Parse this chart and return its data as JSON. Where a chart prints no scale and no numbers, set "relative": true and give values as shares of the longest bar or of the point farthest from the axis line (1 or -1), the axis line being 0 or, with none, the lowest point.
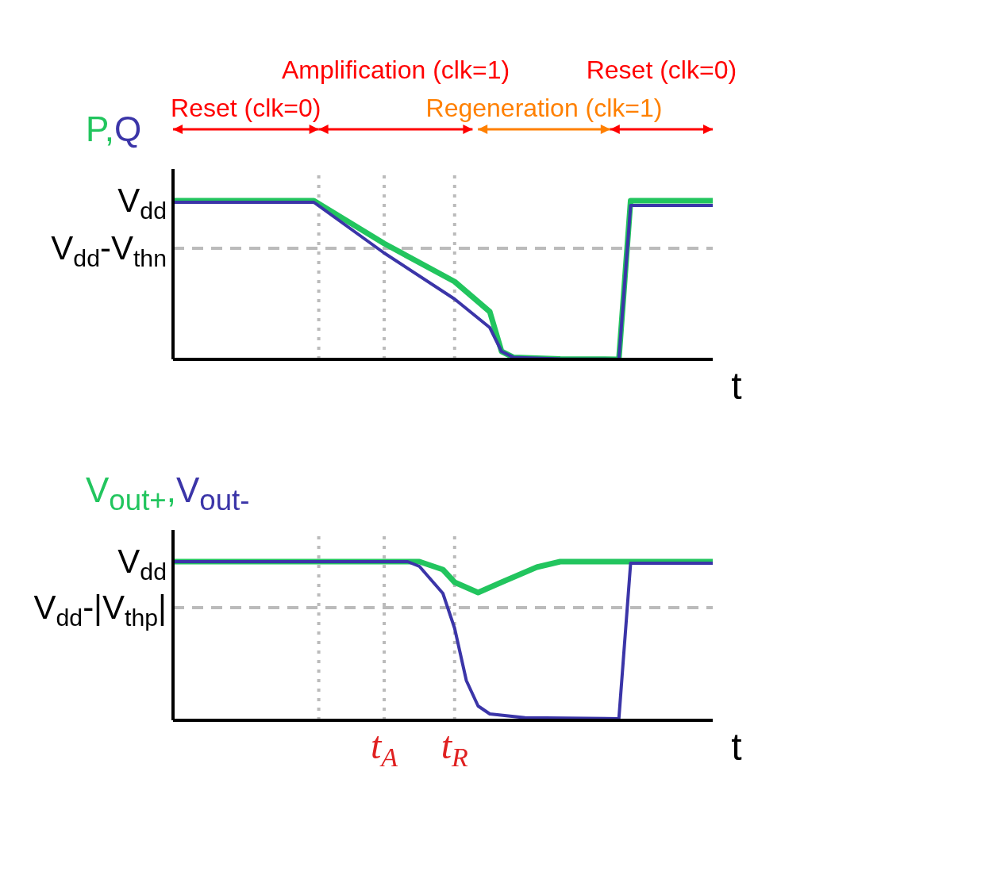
{
  "chart_data": [
    {
      "type": "line",
      "xlabel": "t",
      "relative": true,
      "tick_labels": false,
      "categories": [
        null,
        null,
        null,
        null,
        null,
        null,
        null,
        null,
        null,
        null,
        null,
        null,
        null,
        null,
        null,
        null,
        null,
        null,
        "t$_{A}$",
        null,
        null,
        null,
        null,
        null,
        "t$_{R}$",
        null,
        null,
        null,
        null,
        null,
        null,
        null,
        null,
        null,
        null,
        null,
        null,
        null,
        null,
        null,
        null,
        null,
        null,
        null,
        null,
        null,
        null
      ],
      "annotations": [
        "V$_{dd}$",
        "Reset (clk=0)",
        "Amplification (clk=1)",
        "Regeneration (clk=1)",
        "Reset (clk=0)"
      ],
      "series": [
        {
          "name": "P,",
          "color": "#22c55e",
          "values": [
            1.0,
            null,
            null,
            null,
            null,
            null,
            null,
            null,
            null,
            null,
            null,
            null,
            1.0,
            null,
            null,
            null,
            null,
            null,
            0.73,
            null,
            null,
            null,
            null,
            null,
            0.49,
            null,
            null,
            0.3,
            0.05,
            0.013,
            null,
            null,
            null,
            0.003,
            null,
            null,
            null,
            null,
            0.0,
            1.0,
            null,
            null,
            null,
            null,
            null,
            null,
            1.0
          ]
        },
        {
          "name": "Q",
          "color": "#3b35a8",
          "values": [
            0.99,
            null,
            null,
            null,
            null,
            null,
            null,
            null,
            null,
            null,
            null,
            null,
            0.99,
            null,
            null,
            null,
            null,
            null,
            0.67,
            null,
            null,
            null,
            null,
            null,
            0.38,
            null,
            null,
            0.2,
            0.05,
            0.013,
            null,
            null,
            null,
            0.003,
            null,
            null,
            null,
            null,
            0.0,
            0.97,
            null,
            null,
            null,
            null,
            null,
            null,
            0.97
          ]
        }
      ],
      "ref_lines": [
        {
          "axis": "y",
          "value": 0.7,
          "label": "V$_{dd}$-V$_{thn}$",
          "color": "#bbbbbb",
          "line_style": "dashed"
        },
        {
          "axis": "x",
          "value": "t$_{A}$",
          "color": "#bbbbbb",
          "line_style": "dotted"
        },
        {
          "axis": "x",
          "value": "t$_{R}$",
          "color": "#bbbbbb",
          "line_style": "dotted"
        }
      ]
    },
    {
      "type": "line",
      "xlabel": "t",
      "relative": true,
      "categories": [
        null,
        null,
        null,
        null,
        null,
        null,
        null,
        null,
        null,
        null,
        null,
        null,
        null,
        null,
        null,
        null,
        null,
        null,
        "t$_{A}$",
        null,
        null,
        null,
        null,
        null,
        "t$_{R}$",
        null,
        null,
        null,
        null,
        null,
        null,
        null,
        null,
        null,
        null,
        null,
        null,
        null,
        null,
        null,
        null,
        null,
        null,
        null,
        null,
        null,
        null
      ],
      "annotations": [
        "V$_{dd}$"
      ],
      "series": [
        {
          "name": "V$_{out+}$,",
          "color": "#22c55e",
          "values": [
            1.0,
            null,
            null,
            null,
            null,
            null,
            null,
            null,
            null,
            null,
            null,
            null,
            null,
            null,
            null,
            null,
            null,
            null,
            null,
            null,
            null,
            1.0,
            null,
            0.95,
            0.87,
            null,
            0.805,
            null,
            0.87,
            null,
            null,
            0.965,
            null,
            1.0,
            null,
            null,
            null,
            null,
            null,
            null,
            null,
            null,
            null,
            null,
            null,
            null,
            1.0
          ]
        },
        {
          "name": "V$_{out-}$",
          "color": "#3b35a8",
          "values": [
            1.0,
            null,
            null,
            null,
            null,
            null,
            null,
            null,
            null,
            null,
            null,
            null,
            null,
            null,
            null,
            null,
            null,
            null,
            null,
            null,
            1.0,
            0.97,
            null,
            0.8,
            0.58,
            0.25,
            0.09,
            0.04,
            null,
            null,
            0.016,
            null,
            null,
            null,
            null,
            null,
            null,
            null,
            0.01,
            0.99,
            null,
            null,
            null,
            null,
            null,
            null,
            0.99
          ]
        }
      ],
      "ref_lines": [
        {
          "axis": "y",
          "value": 0.71,
          "label": "V$_{dd}$-|V$_{thp}$|",
          "color": "#bbbbbb",
          "line_style": "dashed"
        },
        {
          "axis": "x",
          "value": "t$_{A}$",
          "color": "#bbbbbb",
          "line_style": "dotted"
        },
        {
          "axis": "x",
          "value": "t$_{R}$",
          "color": "#bbbbbb",
          "line_style": "dotted"
        }
      ]
    }
  ]
}
